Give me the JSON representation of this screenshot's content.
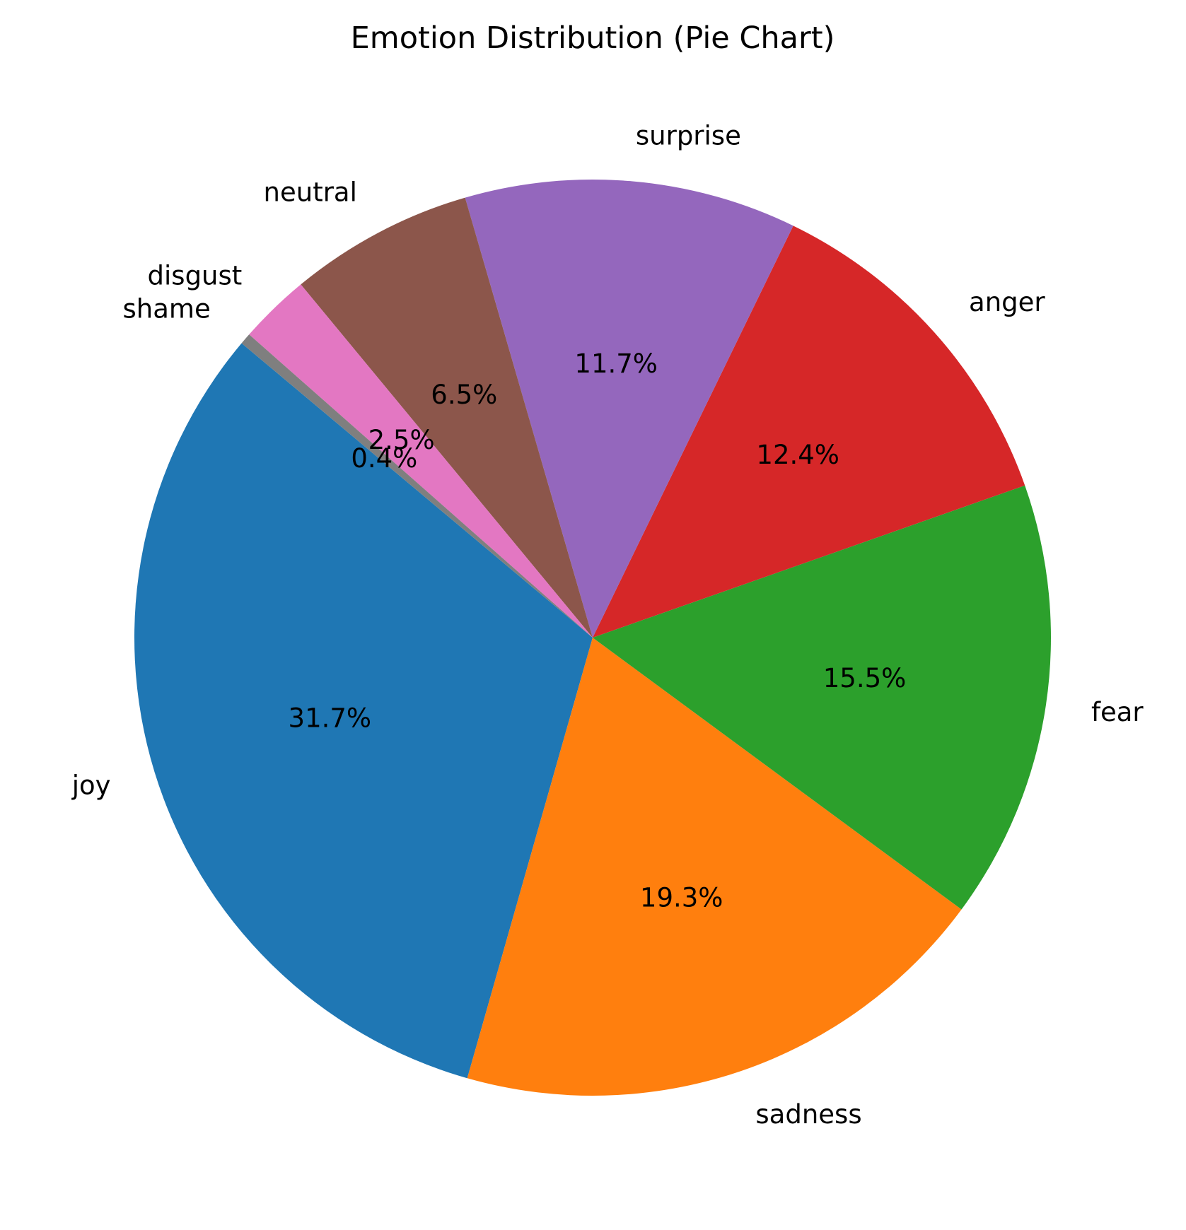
{
  "chart_data": {
    "type": "pie",
    "title": "Emotion Distribution (Pie Chart)",
    "start_angle_deg": 140,
    "direction": "counterclockwise",
    "slices": [
      {
        "label": "joy",
        "value": 31.7,
        "pct_label": "31.7%",
        "color": "#1f77b4"
      },
      {
        "label": "sadness",
        "value": 19.3,
        "pct_label": "19.3%",
        "color": "#ff7f0e"
      },
      {
        "label": "fear",
        "value": 15.5,
        "pct_label": "15.5%",
        "color": "#2ca02c"
      },
      {
        "label": "anger",
        "value": 12.4,
        "pct_label": "12.4%",
        "color": "#d62728"
      },
      {
        "label": "surprise",
        "value": 11.7,
        "pct_label": "11.7%",
        "color": "#9467bd"
      },
      {
        "label": "neutral",
        "value": 6.5,
        "pct_label": "6.5%",
        "color": "#8c564b"
      },
      {
        "label": "disgust",
        "value": 2.5,
        "pct_label": "2.5%",
        "color": "#e377c2"
      },
      {
        "label": "shame",
        "value": 0.4,
        "pct_label": "0.4%",
        "color": "#7f7f7f"
      }
    ]
  }
}
